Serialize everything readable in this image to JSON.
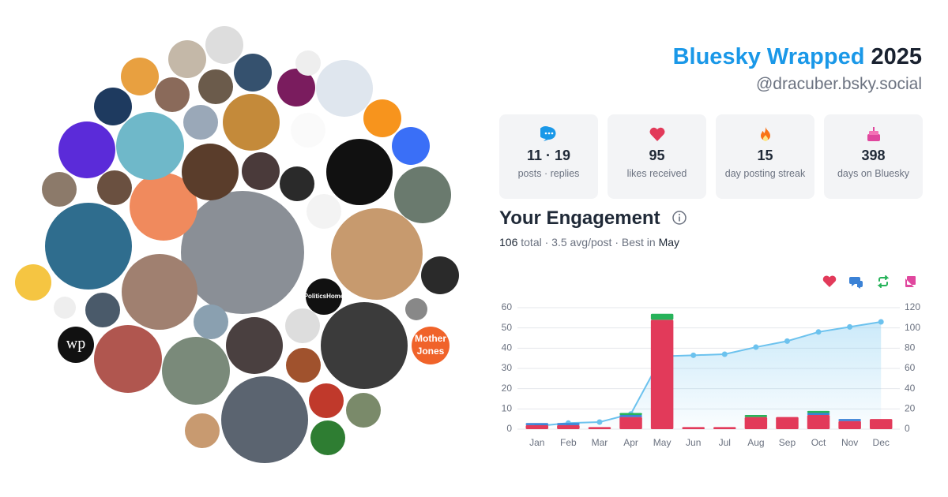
{
  "header": {
    "title": "Bluesky Wrapped",
    "year": "2025",
    "handle": "@dracuber.bsky.social"
  },
  "stats": [
    {
      "value": "11 · 19",
      "label": "posts · replies"
    },
    {
      "value": "95",
      "label": "likes received"
    },
    {
      "value": "15",
      "label": "day posting streak"
    },
    {
      "value": "398",
      "label": "days on Bluesky"
    }
  ],
  "engagement": {
    "title": "Your Engagement",
    "total": "106",
    "summary": "total · 3.5 avg/post · Best in",
    "best": "May"
  },
  "avatar_labels": [
    "Mother",
    "Jones",
    "PoliticsHome",
    "wp"
  ],
  "chart_data": {
    "type": "bar",
    "stacked": true,
    "grid": true,
    "categories": [
      "Jan",
      "Feb",
      "Mar",
      "Apr",
      "May",
      "Jun",
      "Jul",
      "Aug",
      "Sep",
      "Oct",
      "Nov",
      "Dec"
    ],
    "series": [
      {
        "color": "#e23a5a",
        "values": [
          2,
          2,
          1,
          6,
          54,
          1,
          1,
          6,
          6,
          7,
          4,
          5
        ]
      },
      {
        "color": "#3b82d6",
        "values": [
          1,
          1,
          0,
          1,
          0,
          0,
          0,
          0,
          0,
          1,
          1,
          0
        ]
      },
      {
        "color": "#27b35a",
        "values": [
          0,
          0,
          0,
          1,
          3,
          0,
          0,
          1,
          0,
          1,
          0,
          0
        ]
      },
      {
        "color": "#e0479e",
        "values": [
          0,
          0,
          0,
          0,
          0,
          0,
          0,
          0,
          0,
          0,
          0,
          0
        ]
      },
      {
        "type": "line",
        "axis": "y2",
        "color": "#6cc2ee",
        "values": [
          3,
          6,
          7,
          15,
          72,
          73,
          74,
          81,
          87,
          96,
          101,
          106
        ]
      }
    ],
    "ylim": [
      0,
      60
    ],
    "yticks": [
      0,
      10,
      20,
      30,
      40,
      50,
      60
    ],
    "y2lim": [
      0,
      120
    ],
    "y2ticks": [
      0,
      20,
      40,
      60,
      80,
      100,
      120
    ]
  }
}
